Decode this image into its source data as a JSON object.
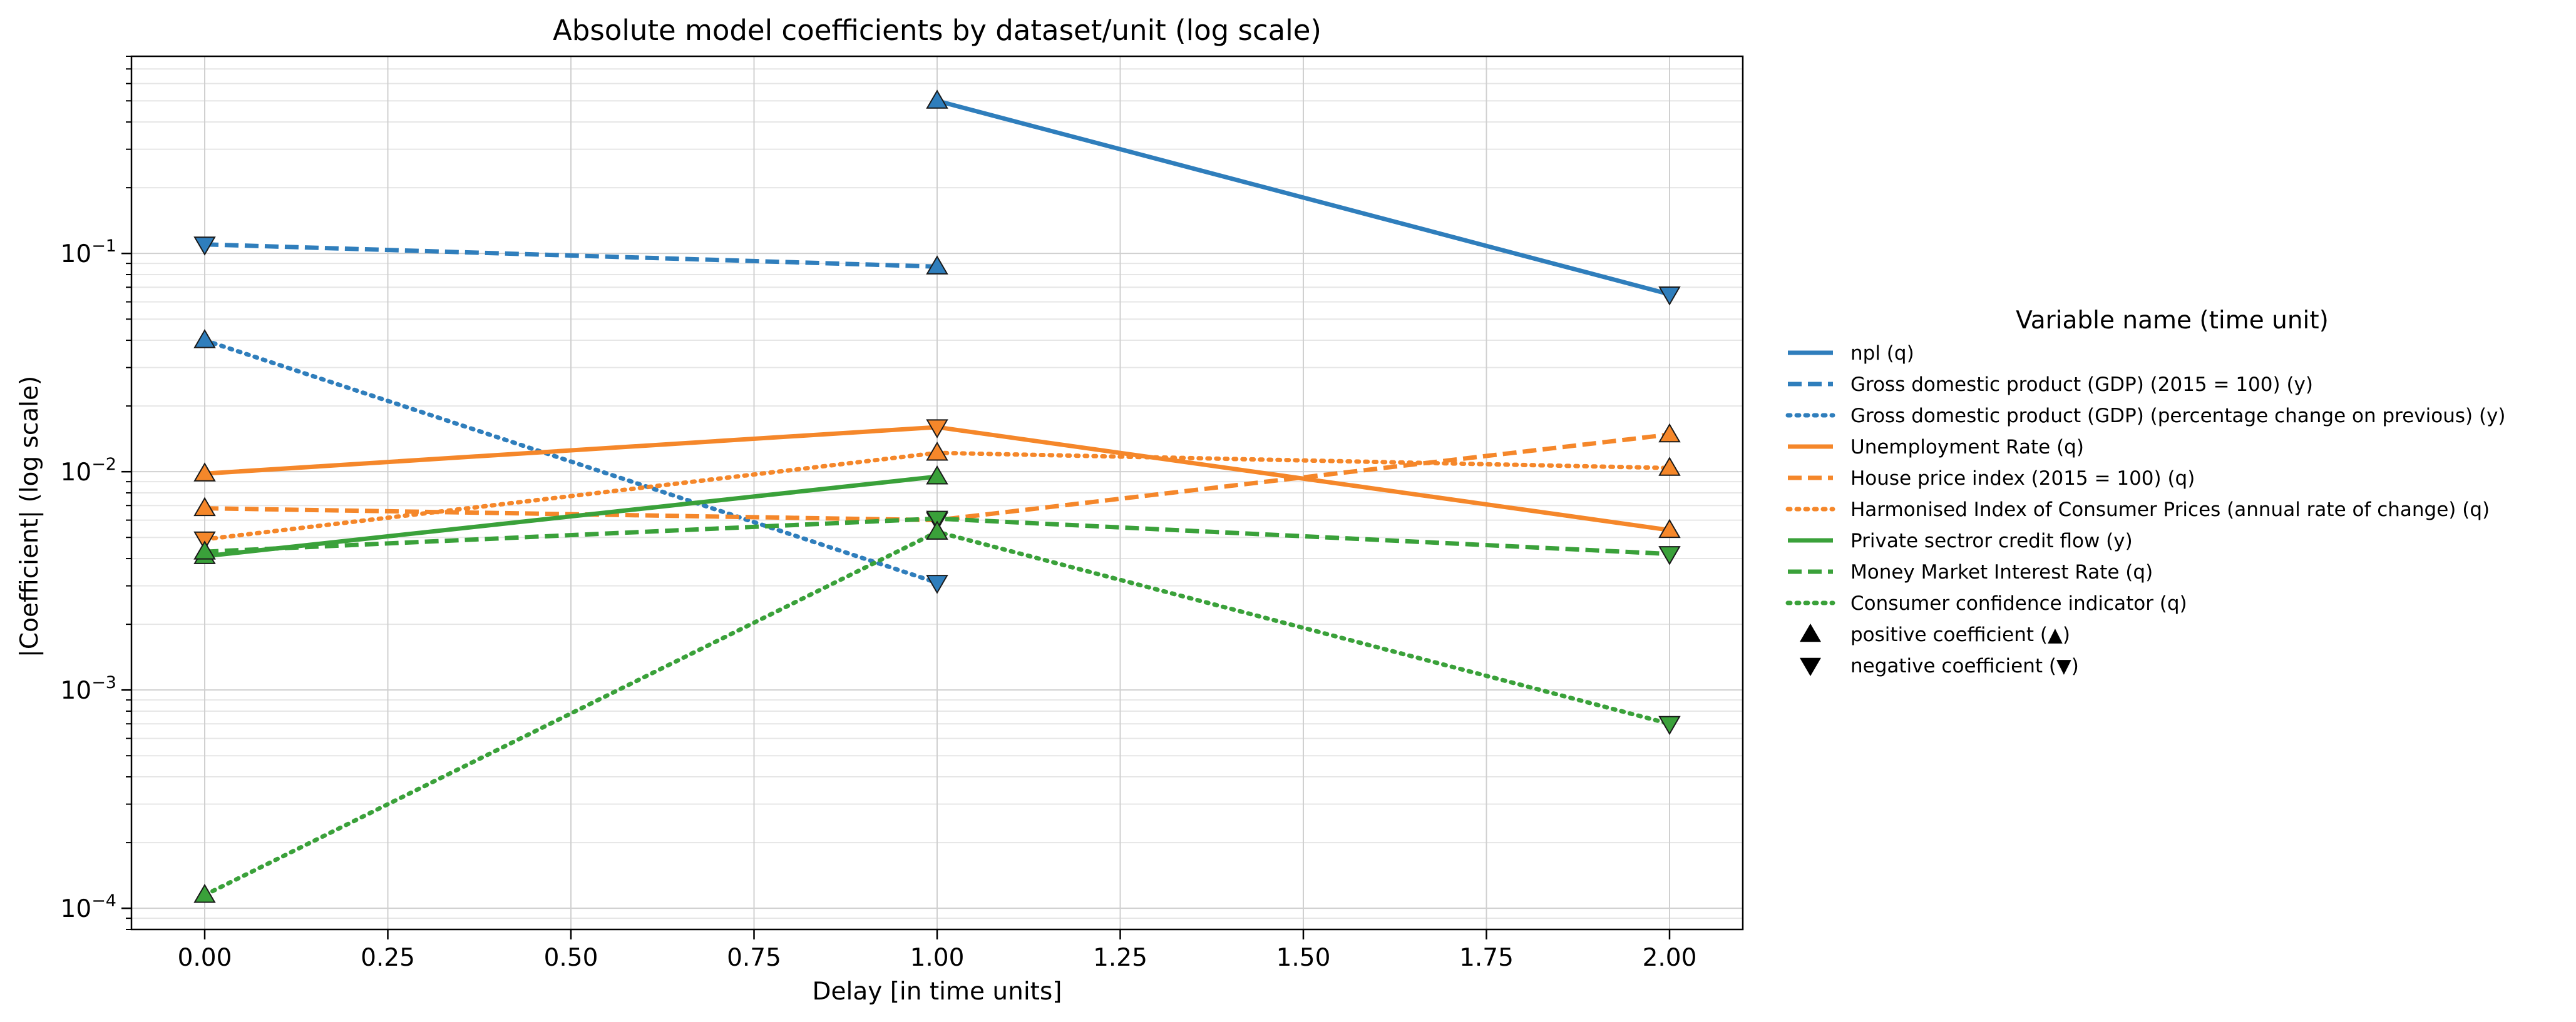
{
  "chart_data": {
    "type": "line",
    "title": "Absolute model coefficients by dataset/unit (log scale)",
    "xlabel": "Delay [in time units]",
    "ylabel": "|Coefficient| (log scale)",
    "xlim": [
      -0.1,
      2.1
    ],
    "ylim": [
      8e-05,
      0.8
    ],
    "yscale": "log",
    "grid": true,
    "x_ticks": [
      "0.00",
      "0.25",
      "0.50",
      "0.75",
      "1.00",
      "1.25",
      "1.50",
      "1.75",
      "2.00"
    ],
    "y_ticks": [
      {
        "base": "10",
        "exp": "−4",
        "value": 0.0001
      },
      {
        "base": "10",
        "exp": "−3",
        "value": 0.001
      },
      {
        "base": "10",
        "exp": "−2",
        "value": 0.01
      },
      {
        "base": "10",
        "exp": "−1",
        "value": 0.1
      }
    ],
    "legend_title": "Variable name (time unit)",
    "legend_position": "right",
    "series": [
      {
        "name": "npl (q)",
        "color": "#2f7ebc",
        "dash": "solid",
        "points": [
          {
            "x": 1,
            "y": 0.5,
            "sign": "positive"
          },
          {
            "x": 2,
            "y": 0.065,
            "sign": "negative"
          }
        ]
      },
      {
        "name": "Gross domestic product (GDP) (2015 = 100) (y)",
        "color": "#2f7ebc",
        "dash": "dashed",
        "points": [
          {
            "x": 0,
            "y": 0.11,
            "sign": "negative"
          },
          {
            "x": 1,
            "y": 0.087,
            "sign": "positive"
          }
        ]
      },
      {
        "name": "Gross domestic product (GDP) (percentage change on previous) (y)",
        "color": "#2f7ebc",
        "dash": "dotted",
        "points": [
          {
            "x": 0,
            "y": 0.04,
            "sign": "positive"
          },
          {
            "x": 1,
            "y": 0.0031,
            "sign": "negative"
          }
        ]
      },
      {
        "name": "Unemployment Rate (q)",
        "color": "#f5872a",
        "dash": "solid",
        "points": [
          {
            "x": 0,
            "y": 0.0098,
            "sign": "positive"
          },
          {
            "x": 1,
            "y": 0.016,
            "sign": "negative"
          },
          {
            "x": 2,
            "y": 0.0054,
            "sign": "positive"
          }
        ]
      },
      {
        "name": "House price index (2015 = 100) (q)",
        "color": "#f5872a",
        "dash": "dashed",
        "points": [
          {
            "x": 0,
            "y": 0.0068,
            "sign": "positive"
          },
          {
            "x": 1,
            "y": 0.006,
            "sign": "negative"
          },
          {
            "x": 2,
            "y": 0.0148,
            "sign": "positive"
          }
        ]
      },
      {
        "name": "Harmonised Index of Consumer Prices (annual rate of change) (q)",
        "color": "#f5872a",
        "dash": "dotted",
        "points": [
          {
            "x": 0,
            "y": 0.0049,
            "sign": "negative"
          },
          {
            "x": 1,
            "y": 0.0122,
            "sign": "positive"
          },
          {
            "x": 2,
            "y": 0.0104,
            "sign": "positive"
          }
        ]
      },
      {
        "name": "Private sectror credit flow (y)",
        "color": "#3aa13a",
        "dash": "solid",
        "points": [
          {
            "x": 0,
            "y": 0.0041,
            "sign": "positive"
          },
          {
            "x": 1,
            "y": 0.0095,
            "sign": "positive"
          }
        ]
      },
      {
        "name": "Money Market Interest Rate (q)",
        "color": "#3aa13a",
        "dash": "dashed",
        "points": [
          {
            "x": 0,
            "y": 0.0043,
            "sign": "positive"
          },
          {
            "x": 1,
            "y": 0.0061,
            "sign": "negative"
          },
          {
            "x": 2,
            "y": 0.0042,
            "sign": "negative"
          }
        ]
      },
      {
        "name": "Consumer confidence indicator (q)",
        "color": "#3aa13a",
        "dash": "dotted",
        "points": [
          {
            "x": 0,
            "y": 0.000115,
            "sign": "positive"
          },
          {
            "x": 1,
            "y": 0.0053,
            "sign": "positive"
          },
          {
            "x": 2,
            "y": 0.0007,
            "sign": "negative"
          }
        ]
      }
    ],
    "marker_legend": [
      {
        "symbol": "▲",
        "label": "positive coefficient (▲)"
      },
      {
        "symbol": "▼",
        "label": "negative coefficient (▼)"
      }
    ]
  }
}
